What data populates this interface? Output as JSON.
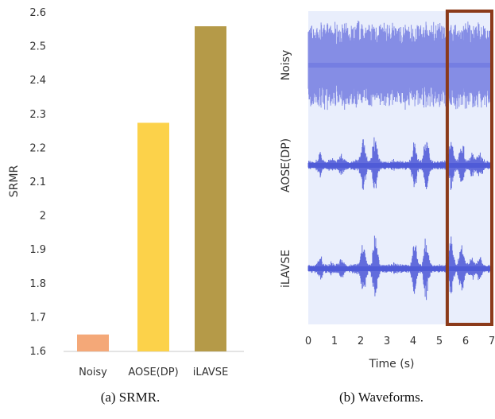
{
  "chart_data": [
    {
      "type": "bar",
      "categories": [
        "Noisy",
        "AOSE(DP)",
        "iLAVSE"
      ],
      "values": [
        1.65,
        2.275,
        2.56
      ],
      "ylabel": "SRMR",
      "ylim": [
        1.6,
        2.6
      ],
      "yticks": [
        "1.6",
        "1.7",
        "1.8",
        "1.9",
        "2",
        "2.1",
        "2.2",
        "2.3",
        "2.4",
        "2.5",
        "2.6"
      ],
      "grid": false,
      "colors": [
        "#f4a878",
        "#fcd24a",
        "#b59a48"
      ],
      "caption": "(a) SRMR."
    },
    {
      "type": "line",
      "series": [
        {
          "name": "Noisy",
          "color": "#5a64dc"
        },
        {
          "name": "AOSE(DP)",
          "color": "#4a55d6"
        },
        {
          "name": "iLAVSE",
          "color": "#4a55d6"
        }
      ],
      "xlabel": "Time (s)",
      "xlim": [
        0,
        7
      ],
      "xticks": [
        "0",
        "1",
        "2",
        "3",
        "4",
        "5",
        "6",
        "7"
      ],
      "highlight": {
        "x_start": 5.3,
        "x_end": 7,
        "color": "#8b3a1a"
      },
      "background": "#e9eefc",
      "caption": "(b) Waveforms."
    }
  ]
}
